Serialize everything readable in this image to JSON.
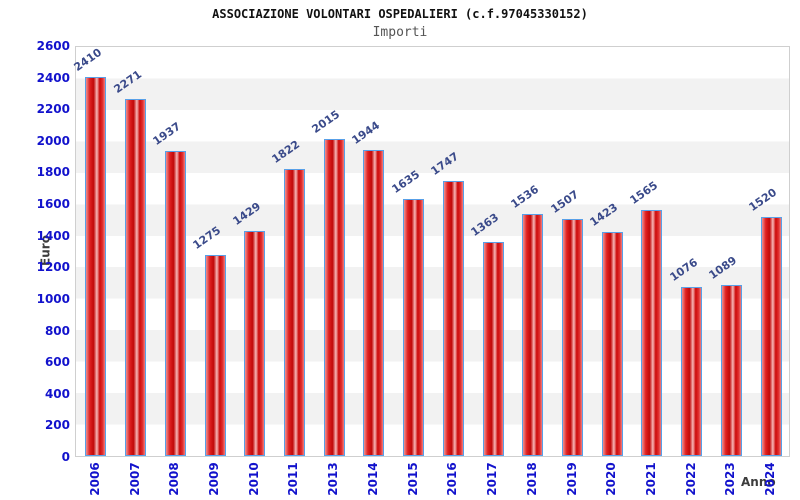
{
  "title": "ASSOCIAZIONE VOLONTARI OSPEDALIERI (c.f.97045330152)",
  "subtitle": "Importi",
  "chart_data": {
    "type": "bar",
    "title": "ASSOCIAZIONE VOLONTARI OSPEDALIERI (c.f.97045330152)",
    "subtitle": "Importi",
    "xlabel": "Anno",
    "ylabel": "Euro",
    "categories": [
      "2006",
      "2007",
      "2008",
      "2009",
      "2010",
      "2011",
      "2013",
      "2014",
      "2015",
      "2016",
      "2017",
      "2018",
      "2019",
      "2020",
      "2021",
      "2022",
      "2023",
      "2024"
    ],
    "values": [
      2410,
      2271,
      1937,
      1275,
      1429,
      1822,
      2015,
      1944,
      1635,
      1747,
      1363,
      1536,
      1507,
      1423,
      1565,
      1076,
      1089,
      1520
    ],
    "ylim": [
      0,
      2600
    ],
    "yticks": [
      0,
      200,
      400,
      600,
      800,
      1000,
      1200,
      1400,
      1600,
      1800,
      2000,
      2200,
      2400,
      2600
    ],
    "grid": "alternating horizontal bands every 200 units",
    "legend": "none",
    "colors": {
      "bar_fill": "#d51414",
      "bar_border": "#58a0e8",
      "tick_label": "#1212cc",
      "value_label": "#3a4a8a",
      "axis_title": "#3c3c3c",
      "subtitle": "#555555",
      "band_gray": "#f2f2f2",
      "plot_border": "#cfcfcf"
    }
  }
}
